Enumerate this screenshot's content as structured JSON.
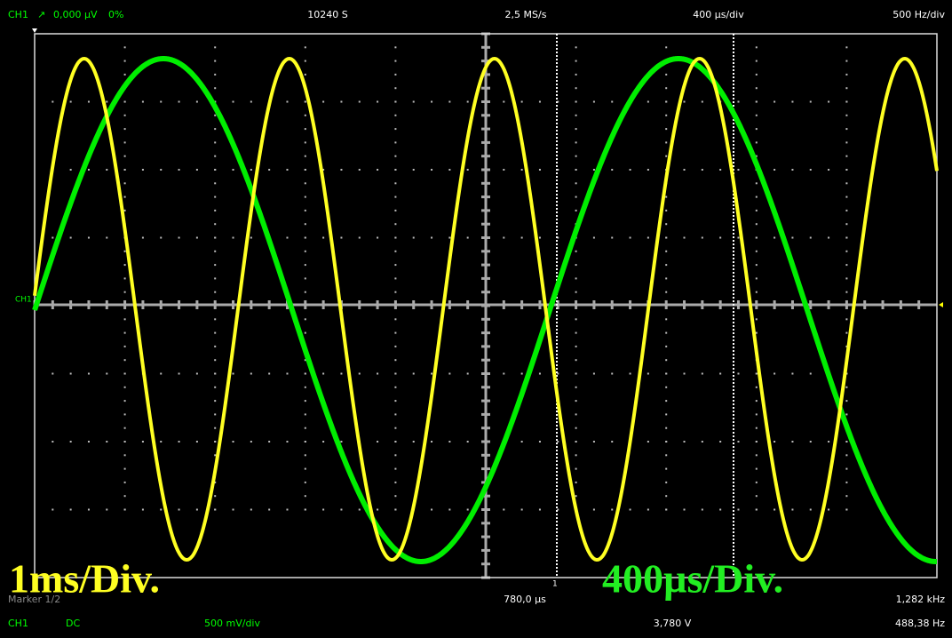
{
  "header": {
    "channel": "CH1",
    "trigger_icon": "↗",
    "trigger_level": "0,000 µV",
    "trigger_percent": "0%",
    "samples": "10240 S",
    "sample_rate": "2,5 MS/s",
    "timebase": "400 µs/div",
    "freq_div": "500 Hz/div"
  },
  "screen": {
    "channel_marker": "CH1",
    "cursor_label": "1",
    "overlay_left": "1ms/Div.",
    "overlay_right": "400µs/Div."
  },
  "footer": {
    "marker": "Marker 1/2",
    "cursor_time": "780,0 µs",
    "cursor_freq": "1,282 kHz",
    "channel": "CH1",
    "coupling": "DC",
    "volts_div": "500 mV/div",
    "cursor_volt": "3,780 V",
    "freq_value": "488,38 Hz"
  }
}
